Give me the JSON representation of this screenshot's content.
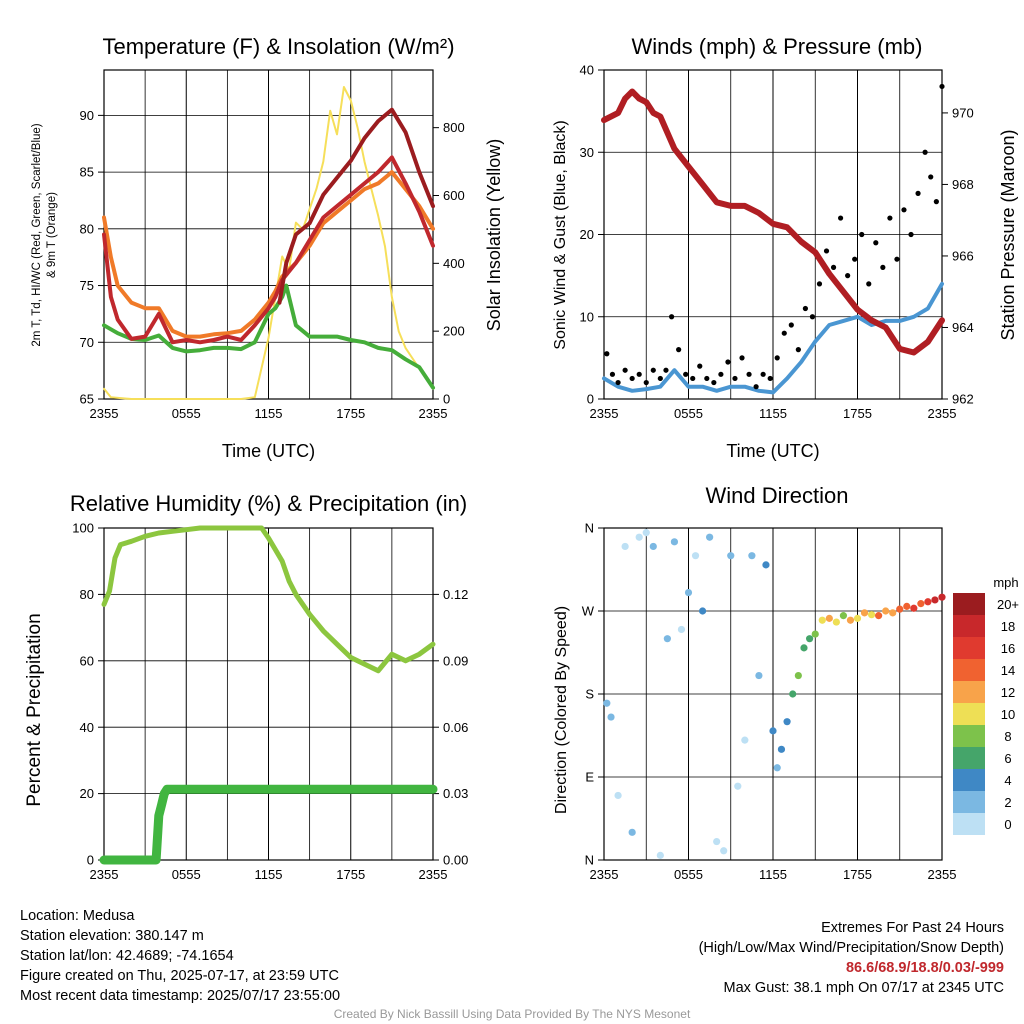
{
  "x_ticks": [
    "2355",
    "0555",
    "1155",
    "1755",
    "2355"
  ],
  "legend": {
    "unit": "mph",
    "labels": [
      "20+",
      "18",
      "16",
      "14",
      "12",
      "10",
      "8",
      "6",
      "4",
      "2",
      "0"
    ],
    "colors": [
      "#9b1c1f",
      "#c8282b",
      "#e03a2f",
      "#f06230",
      "#f8a34a",
      "#eedf55",
      "#7dc24b",
      "#45a56a",
      "#3f88c5",
      "#7bb8e2",
      "#bde0f4"
    ]
  },
  "info": {
    "location": "Location: Medusa",
    "elevation": "Station elevation: 380.147 m",
    "latlon": "Station lat/lon: 42.4689; -74.1654",
    "created": "Figure created on Thu, 2025-07-17, at 23:59 UTC",
    "recent": "Most recent data timestamp: 2025/07/17 23:55:00"
  },
  "extremes": {
    "title": "Extremes For Past 24 Hours",
    "subtitle": "(High/Low/Max Wind/Precipitation/Snow Depth)",
    "values": "86.6/68.9/18.8/0.03/-999",
    "max_gust": "Max Gust: 38.1 mph On 07/17 at 2345 UTC"
  },
  "credit": "Created By Nick Bassill Using Data Provided By The NYS Mesonet",
  "chart_data": [
    {
      "type": "line",
      "title": "Temperature (F) & Insolation (W/m²)",
      "xlabel": "Time (UTC)",
      "ylabel_lines": [
        "2m T, Td, HI/WC (Red, Green, Scarlet/Blue)",
        "& 9m T (Orange)"
      ],
      "y2label": "Solar Insolation (Yellow)",
      "x_range": [
        0,
        24
      ],
      "ylim": [
        65,
        94
      ],
      "y_ticks": [
        65,
        70,
        75,
        80,
        85,
        90
      ],
      "y2lim": [
        0,
        970
      ],
      "y2_ticks": [
        0,
        200,
        400,
        600,
        800
      ],
      "series": [
        {
          "color": "#c0282d",
          "axis": "left",
          "x": [
            0,
            0.5,
            1,
            2,
            3,
            4,
            5,
            6,
            7,
            8,
            9,
            10,
            11,
            12,
            12.5,
            13,
            14,
            15,
            16,
            17,
            18,
            19,
            20,
            21,
            22,
            23,
            24
          ],
          "values": [
            79.5,
            74,
            72,
            70.3,
            70.5,
            72.5,
            70,
            70.2,
            70,
            70.2,
            70.5,
            70.2,
            71.5,
            73,
            74,
            75.5,
            77,
            79,
            81,
            82,
            83,
            84,
            85,
            86.3,
            84,
            81.5,
            78.5
          ]
        },
        {
          "color": "#f07a28",
          "axis": "left",
          "x": [
            0,
            0.5,
            1,
            2,
            3,
            4,
            5,
            6,
            7,
            8,
            9,
            10,
            11,
            12,
            12.5,
            13,
            14,
            15,
            16,
            17,
            18,
            19,
            20,
            21,
            22,
            23,
            24
          ],
          "values": [
            81,
            77.5,
            75,
            73.5,
            73,
            73,
            71,
            70.5,
            70.5,
            70.7,
            70.8,
            71,
            72,
            73.5,
            74.5,
            75.8,
            77,
            78.5,
            80.5,
            81.5,
            82.5,
            83.5,
            84,
            85,
            83.5,
            82,
            80
          ]
        },
        {
          "color": "#45ad3a",
          "axis": "left",
          "x": [
            0,
            1,
            2,
            3,
            4,
            5,
            6,
            7,
            8,
            9,
            10,
            11,
            12,
            12.5,
            13,
            13.3,
            14,
            15,
            16,
            17,
            18,
            19,
            20,
            21,
            22,
            23,
            24
          ],
          "values": [
            71.5,
            70.8,
            70.3,
            70.2,
            70.6,
            69.5,
            69.2,
            69.3,
            69.5,
            69.5,
            69.4,
            70,
            72.5,
            73,
            74,
            75,
            71.5,
            70.5,
            70.5,
            70.5,
            70.2,
            70,
            69.5,
            69.3,
            68.5,
            67.8,
            66
          ]
        },
        {
          "color": "#9b1c1f",
          "axis": "left",
          "x": [
            12.8,
            13.3,
            14,
            15,
            16,
            17,
            18,
            19,
            20,
            21,
            22,
            23,
            24
          ],
          "values": [
            73.5,
            77,
            79.5,
            80.5,
            83,
            84.5,
            86,
            88,
            89.5,
            90.5,
            88.5,
            85,
            82
          ]
        },
        {
          "color": "#f6df5a",
          "axis": "right",
          "x": [
            0,
            0.5,
            2,
            4,
            6,
            8,
            10,
            11,
            12,
            12.5,
            13,
            13.5,
            14,
            14.5,
            15,
            15.5,
            16,
            16.5,
            17,
            17.5,
            18,
            18.5,
            19,
            19.5,
            20,
            20.5,
            21,
            21.5,
            22,
            23,
            24
          ],
          "values": [
            30,
            5,
            0,
            0,
            0,
            0,
            0,
            5,
            180,
            300,
            420,
            380,
            520,
            500,
            560,
            620,
            700,
            850,
            780,
            920,
            880,
            800,
            700,
            620,
            540,
            450,
            300,
            200,
            150,
            90,
            30
          ]
        }
      ]
    },
    {
      "type": "scatter",
      "title": "Winds (mph) & Pressure (mb)",
      "xlabel": "Time (UTC)",
      "ylabel": "Sonic Wind & Gust (Blue, Black)",
      "y2label": "Station Pressure (Maroon)",
      "x_range": [
        0,
        24
      ],
      "ylim": [
        0,
        40
      ],
      "y_ticks": [
        0,
        10,
        20,
        30,
        40
      ],
      "y2lim": [
        962,
        971.2
      ],
      "y2_ticks": [
        962,
        964,
        966,
        968,
        970
      ],
      "series": [
        {
          "color": "#4a96d2",
          "axis": "left",
          "x": [
            0,
            1,
            2,
            3,
            4,
            5,
            6,
            7,
            8,
            9,
            10,
            11,
            12,
            13,
            14,
            15,
            16,
            17,
            18,
            19,
            20,
            21,
            22,
            23,
            24
          ],
          "values": [
            2.5,
            1.5,
            1,
            1.2,
            1.5,
            3.5,
            1.5,
            1.5,
            1,
            1.5,
            1.5,
            1,
            0.8,
            2.5,
            4.5,
            7,
            9,
            9.5,
            10,
            9,
            9.5,
            9.5,
            10,
            11,
            14
          ]
        },
        {
          "color": "#b01e23",
          "axis": "right",
          "x": [
            0,
            1,
            1.5,
            2,
            2.5,
            3,
            3.5,
            4,
            5,
            6,
            7,
            8,
            9,
            10,
            11,
            12,
            13,
            14,
            15,
            16,
            17,
            18,
            19,
            20,
            21,
            22,
            23,
            24
          ],
          "values": [
            969.8,
            970.0,
            970.4,
            970.6,
            970.4,
            970.3,
            970.0,
            969.9,
            969.0,
            968.5,
            968.0,
            967.5,
            967.4,
            967.4,
            967.2,
            966.9,
            966.8,
            966.4,
            966.1,
            965.5,
            965.0,
            964.5,
            964.2,
            964.0,
            963.4,
            963.3,
            963.6,
            964.2
          ]
        },
        {
          "color": "#000000",
          "axis": "left",
          "x": [
            0.2,
            0.6,
            1,
            1.5,
            2,
            2.5,
            3,
            3.5,
            4,
            4.4,
            4.8,
            5.3,
            5.8,
            6.3,
            6.8,
            7.3,
            7.8,
            8.3,
            8.8,
            9.3,
            9.8,
            10.3,
            10.8,
            11.3,
            11.8,
            12.3,
            12.8,
            13.3,
            13.8,
            14.3,
            14.8,
            15.3,
            15.8,
            16.3,
            16.8,
            17.3,
            17.8,
            18.3,
            18.8,
            19.3,
            19.8,
            20.3,
            20.8,
            21.3,
            21.8,
            22.3,
            22.8,
            23.2,
            23.6,
            24
          ],
          "values": [
            5.5,
            3,
            2,
            3.5,
            2.5,
            3,
            2,
            3.5,
            2.5,
            3.5,
            10,
            6,
            3,
            2.5,
            4,
            2.5,
            2,
            3,
            4.5,
            2.5,
            5,
            3,
            1.5,
            3,
            2.5,
            5,
            8,
            9,
            6,
            11,
            10,
            14,
            18,
            16,
            22,
            15,
            17,
            20,
            14,
            19,
            16,
            22,
            17,
            23,
            20,
            25,
            30,
            27,
            24,
            38
          ]
        }
      ]
    },
    {
      "type": "line",
      "title": "Relative Humidity (%) & Precipitation (in)",
      "ylabel": "Percent & Precipitation",
      "x_range": [
        0,
        24
      ],
      "ylim": [
        0,
        100
      ],
      "y_ticks": [
        0,
        20,
        40,
        60,
        80,
        100
      ],
      "y2lim": [
        0,
        0.15
      ],
      "y2_ticks": [
        "0.00",
        "0.03",
        "0.06",
        "0.09",
        "0.12"
      ],
      "series": [
        {
          "color": "#8cc63f",
          "axis": "left",
          "x": [
            0,
            0.4,
            0.8,
            1.2,
            2,
            3,
            4,
            5,
            6,
            7,
            8,
            9,
            10,
            11,
            11.5,
            12,
            13,
            13.5,
            14,
            14.5,
            15,
            16,
            17,
            18,
            19,
            20,
            21,
            22,
            23,
            24
          ],
          "values": [
            77,
            81,
            91,
            95,
            96,
            97.5,
            98.5,
            99,
            99.5,
            100,
            100,
            100,
            100,
            100,
            100,
            97,
            90,
            84,
            80,
            77,
            74,
            69,
            65,
            61,
            59,
            57,
            62,
            60,
            62,
            65
          ]
        },
        {
          "color": "#41b540",
          "axis": "right",
          "x": [
            0,
            1,
            2,
            3,
            3.8,
            4,
            4.2,
            4.4,
            4.6,
            5,
            8,
            12,
            16,
            20,
            24
          ],
          "values": [
            0,
            0,
            0,
            0,
            0,
            0.02,
            0.025,
            0.03,
            0.032,
            0.032,
            0.032,
            0.032,
            0.032,
            0.032,
            0.032
          ]
        }
      ]
    },
    {
      "type": "scatter",
      "title": "Wind Direction",
      "ylabel": "Direction (Colored By Speed)",
      "x_range": [
        0,
        24
      ],
      "ylim": [
        0,
        360
      ],
      "y_ticks": [
        "N",
        "E",
        "S",
        "W",
        "N"
      ],
      "x": [
        0.2,
        0.5,
        1,
        1.5,
        2,
        2.5,
        3,
        3.5,
        4,
        4.5,
        5,
        5.5,
        6,
        6.5,
        7,
        7.5,
        8,
        8.5,
        9,
        9.5,
        10,
        10.5,
        11,
        11.5,
        12,
        12.3,
        12.6,
        13,
        13.4,
        13.8,
        14.2,
        14.6,
        15,
        15.5,
        16,
        16.5,
        17,
        17.5,
        18,
        18.5,
        19,
        19.5,
        20,
        20.5,
        21,
        21.5,
        22,
        22.5,
        23,
        23.5,
        24
      ],
      "values": [
        170,
        155,
        70,
        340,
        30,
        350,
        355,
        340,
        5,
        240,
        345,
        250,
        290,
        330,
        270,
        350,
        20,
        10,
        330,
        80,
        130,
        330,
        200,
        320,
        140,
        100,
        120,
        150,
        180,
        200,
        230,
        240,
        245,
        260,
        262,
        258,
        265,
        260,
        262,
        268,
        266,
        265,
        270,
        268,
        272,
        275,
        273,
        278,
        280,
        282,
        285
      ],
      "speed": [
        2,
        2,
        1,
        1,
        2,
        1,
        1,
        3,
        1,
        2,
        3,
        1,
        2,
        1,
        4,
        2,
        1,
        1,
        2,
        1,
        1,
        3,
        2,
        4,
        4,
        3,
        5,
        4,
        6,
        8,
        6,
        7,
        9,
        10,
        12,
        11,
        9,
        12,
        11,
        13,
        10,
        14,
        12,
        13,
        15,
        14,
        16,
        15,
        17,
        18,
        19
      ]
    }
  ]
}
